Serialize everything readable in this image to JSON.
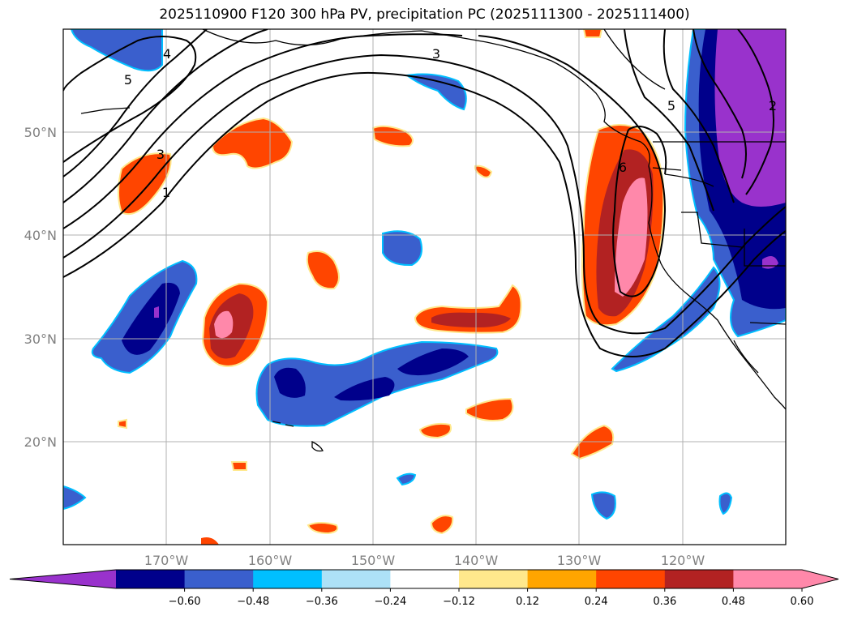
{
  "title": "2025110900 F120 300 hPa PV, precipitation PC (2025111300 - 2025111400)",
  "map": {
    "lat_labels": [
      "50°N",
      "40°N",
      "30°N",
      "20°N"
    ],
    "lon_labels": [
      "170°W",
      "160°W",
      "150°W",
      "140°W",
      "130°W",
      "120°W"
    ]
  },
  "pv_contour_labels": [
    "4",
    "5",
    "3",
    "1",
    "3",
    "5",
    "2",
    "6"
  ],
  "colorbar": {
    "ticks": [
      "−0.60",
      "−0.48",
      "−0.36",
      "−0.24",
      "−0.12",
      "0.12",
      "0.24",
      "0.36",
      "0.48",
      "0.60"
    ],
    "colors": [
      "#9932CC",
      "#00008B",
      "#3A5FCD",
      "#00BFFF",
      "#ADE1F7",
      "#FFFFFF",
      "#FFE88C",
      "#FFA500",
      "#FF4500",
      "#B22222",
      "#FF88AA",
      "#FF88AA"
    ]
  }
}
